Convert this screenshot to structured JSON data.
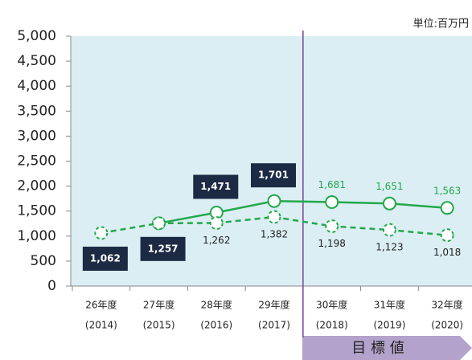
{
  "chart_data": {
    "type": "line",
    "unit_note": "単位:百万円",
    "categories": [
      [
        "26年度",
        "(2014)"
      ],
      [
        "27年度",
        "(2015)"
      ],
      [
        "28年度",
        "(2016)"
      ],
      [
        "29年度",
        "(2017)"
      ],
      [
        "30年度",
        "(2018)"
      ],
      [
        "31年度",
        "(2019)"
      ],
      [
        "32年度",
        "(2020)"
      ]
    ],
    "series": [
      {
        "color": "#22a84a",
        "dash": false,
        "values": [
          null,
          1257,
          1471,
          1701,
          1681,
          1651,
          1563
        ],
        "value_labels": [
          null,
          "1,257",
          "1,471",
          "1,701",
          "1,681",
          "1,651",
          "1,563"
        ]
      },
      {
        "color": "#22a84a",
        "dash": true,
        "values": [
          1062,
          1257,
          1262,
          1382,
          1198,
          1123,
          1018
        ],
        "value_labels": [
          "1,062",
          null,
          "1,262",
          "1,382",
          "1,198",
          "1,123",
          "1,018"
        ]
      }
    ],
    "ylim": [
      0,
      5000
    ],
    "yticks": [
      0,
      {
        "value": 500,
        "label": "500"
      },
      {
        "value": 1000,
        "label": "1,000"
      },
      {
        "value": 1500,
        "label": "1,500"
      },
      {
        "value": 2000,
        "label": "2,000"
      },
      {
        "value": 2500,
        "label": "2,500"
      },
      {
        "value": 3000,
        "label": "3,000"
      },
      {
        "value": 3500,
        "label": "3,500"
      },
      {
        "value": 4000,
        "label": "4,000"
      },
      {
        "value": 4500,
        "label": "4,500"
      },
      {
        "value": 5000,
        "label": "5,000"
      }
    ],
    "target_label": "目 標 値"
  }
}
